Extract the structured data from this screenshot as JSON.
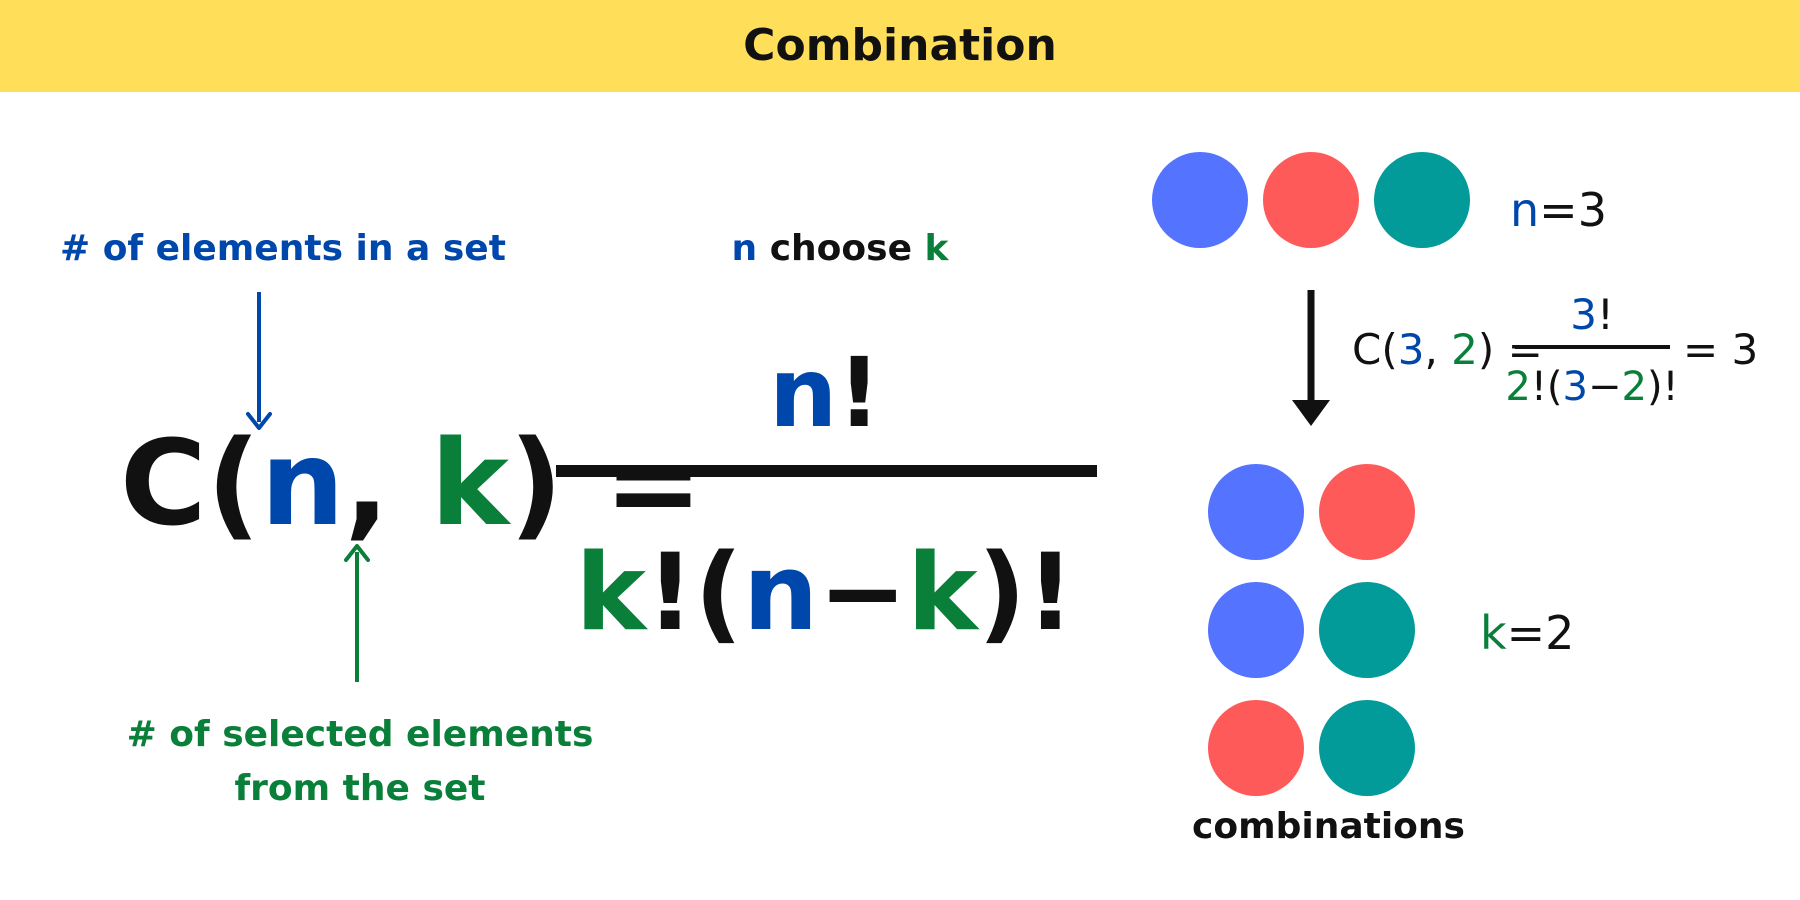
{
  "header": {
    "title": "Combination"
  },
  "annotations": {
    "n_description": "# of elements in a set",
    "k_description": "# of selected elements from the set",
    "choose": {
      "n": "n",
      "word": " choose ",
      "k": "k"
    }
  },
  "formula": {
    "lhs": {
      "c": "C(",
      "n": "n",
      "comma": ", ",
      "k": "k",
      "close": ") ="
    },
    "numerator": {
      "n": "n",
      "bang": "!"
    },
    "denominator": {
      "k": "k",
      "bang1": "!(",
      "n": "n",
      "minus": "−",
      "k2": "k",
      "close": ")!"
    }
  },
  "example": {
    "lhs": {
      "c": "C(",
      "three": "3",
      "comma": ", ",
      "two": "2",
      "close": ") ="
    },
    "numerator": {
      "three": "3",
      "bang": "!"
    },
    "denominator": {
      "two": "2",
      "bang1": "!(",
      "three": "3",
      "minus": "−",
      "two2": "2",
      "close": ")!"
    },
    "result": "= 3",
    "n_eq": {
      "var": "n",
      "val": "=3"
    },
    "k_eq": {
      "var": "k",
      "val": "=2"
    },
    "combinations_label": "combinations"
  },
  "colors": {
    "header": "#ffde59",
    "n": "#0047ab",
    "k": "#0a7f3a",
    "ball_blue": "#5473ff",
    "ball_red": "#ff5a5a",
    "ball_teal": "#039a9a"
  },
  "set_balls": [
    "blue",
    "red",
    "teal"
  ],
  "combination_pairs": [
    [
      "blue",
      "red"
    ],
    [
      "blue",
      "teal"
    ],
    [
      "red",
      "teal"
    ]
  ]
}
